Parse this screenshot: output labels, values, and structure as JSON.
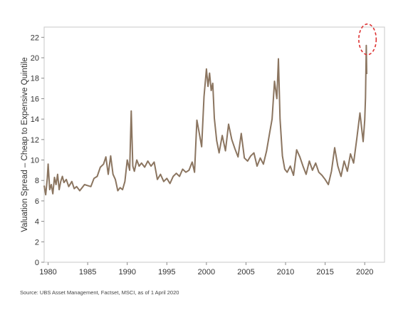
{
  "chart_data": {
    "type": "line",
    "title": "",
    "xlabel": "",
    "ylabel": "Valuation Spread – Cheap to Expensive Quintile",
    "xlim": [
      1979.5,
      2022.5
    ],
    "ylim": [
      0,
      23
    ],
    "x_ticks": [
      1980,
      1985,
      1990,
      1995,
      2000,
      2005,
      2010,
      2015,
      2020
    ],
    "x_tick_labels": [
      "1980",
      "1985",
      "1990",
      "1995",
      "2000",
      "2005",
      "2010",
      "2015",
      "2020"
    ],
    "y_ticks": [
      0,
      2,
      4,
      6,
      8,
      10,
      12,
      14,
      16,
      18,
      20,
      22
    ],
    "y_tick_labels": [
      "0",
      "2",
      "4",
      "6",
      "8",
      "10",
      "12",
      "14",
      "16",
      "18",
      "20",
      "22"
    ],
    "grid": false,
    "line_color": "#8b7560",
    "series": [
      {
        "name": "",
        "x": [
          1979.5,
          1979.7,
          1979.9,
          1980.0,
          1980.2,
          1980.4,
          1980.6,
          1980.8,
          1981.0,
          1981.2,
          1981.4,
          1981.6,
          1981.8,
          1982.0,
          1982.3,
          1982.6,
          1983.0,
          1983.3,
          1983.6,
          1984.0,
          1984.3,
          1984.6,
          1985.0,
          1985.4,
          1985.8,
          1986.2,
          1986.6,
          1987.0,
          1987.3,
          1987.6,
          1987.9,
          1988.2,
          1988.5,
          1988.8,
          1989.1,
          1989.4,
          1989.7,
          1990.0,
          1990.3,
          1990.5,
          1990.7,
          1990.9,
          1991.2,
          1991.5,
          1991.8,
          1992.2,
          1992.6,
          1993.0,
          1993.4,
          1993.8,
          1994.2,
          1994.6,
          1995.0,
          1995.4,
          1995.8,
          1996.2,
          1996.6,
          1997.0,
          1997.4,
          1997.8,
          1998.2,
          1998.5,
          1998.8,
          1999.1,
          1999.4,
          1999.7,
          2000.0,
          2000.2,
          2000.4,
          2000.6,
          2000.8,
          2001.0,
          2001.3,
          2001.6,
          2002.0,
          2002.4,
          2002.8,
          2003.2,
          2003.6,
          2004.0,
          2004.4,
          2004.8,
          2005.2,
          2005.6,
          2006.0,
          2006.4,
          2006.8,
          2007.2,
          2007.6,
          2008.0,
          2008.3,
          2008.6,
          2008.9,
          2009.1,
          2009.3,
          2009.6,
          2009.9,
          2010.2,
          2010.6,
          2011.0,
          2011.4,
          2011.8,
          2012.2,
          2012.6,
          2013.0,
          2013.4,
          2013.8,
          2014.2,
          2014.6,
          2015.0,
          2015.4,
          2015.8,
          2016.2,
          2016.6,
          2017.0,
          2017.4,
          2017.8,
          2018.2,
          2018.6,
          2019.0,
          2019.4,
          2019.8,
          2020.0,
          2020.1,
          2020.2,
          2020.25
        ],
        "y": [
          7.5,
          6.6,
          8.2,
          9.6,
          7.1,
          7.6,
          6.7,
          8.3,
          7.6,
          8.6,
          7.1,
          7.9,
          8.4,
          7.8,
          8.1,
          7.4,
          7.9,
          7.2,
          7.4,
          7.0,
          7.3,
          7.6,
          7.5,
          7.4,
          8.2,
          8.4,
          9.3,
          9.6,
          10.3,
          8.6,
          10.4,
          8.6,
          8.1,
          7.0,
          7.3,
          7.1,
          7.9,
          10.0,
          9.0,
          14.8,
          9.4,
          8.9,
          10.0,
          9.4,
          9.7,
          9.3,
          9.9,
          9.4,
          9.8,
          8.1,
          8.6,
          7.9,
          8.2,
          7.7,
          8.4,
          8.7,
          8.4,
          9.1,
          8.8,
          9.0,
          9.8,
          8.8,
          13.9,
          12.6,
          11.3,
          16.2,
          18.9,
          17.2,
          18.5,
          16.8,
          17.5,
          14.1,
          11.9,
          10.7,
          12.4,
          10.9,
          13.5,
          12.0,
          11.1,
          10.3,
          12.6,
          10.2,
          9.9,
          10.4,
          10.7,
          9.4,
          10.2,
          9.6,
          10.9,
          12.7,
          14.0,
          17.7,
          16.0,
          19.9,
          14.0,
          10.4,
          9.1,
          8.8,
          9.4,
          8.5,
          11.0,
          10.3,
          9.4,
          8.6,
          9.9,
          9.0,
          9.7,
          8.8,
          8.5,
          8.1,
          7.6,
          8.9,
          11.2,
          9.4,
          8.4,
          9.9,
          8.9,
          10.6,
          9.7,
          12.1,
          14.6,
          11.8,
          13.9,
          16.1,
          21.2,
          18.4
        ]
      }
    ],
    "annotations": [
      {
        "type": "dashed-ellipse",
        "color": "#dd3333",
        "x": 2020.35,
        "y": 21.8,
        "rx": 1.1,
        "ry": 1.5
      }
    ],
    "source": "Source: UBS Asset Management, Factset, MSCI, as of 1 April 2020"
  }
}
